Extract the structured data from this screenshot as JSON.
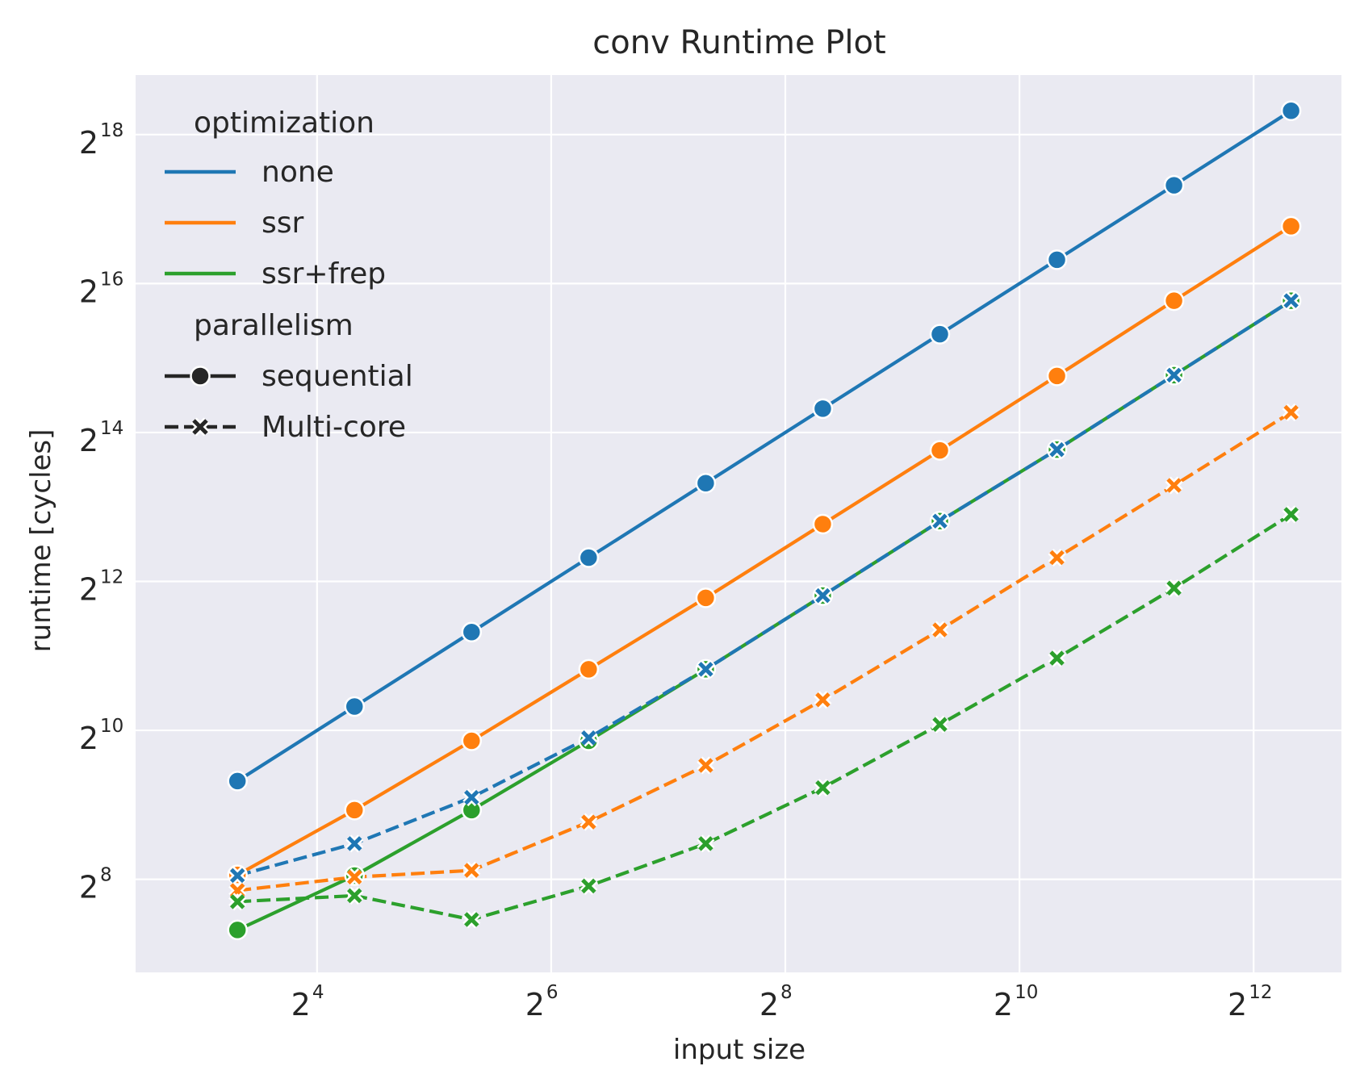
{
  "chart_data": {
    "type": "line",
    "title": "conv Runtime Plot",
    "xlabel": "input size",
    "ylabel": "runtime [cycles]",
    "xscale": "log2",
    "yscale": "log2",
    "xlim_log2": [
      2.45,
      12.75
    ],
    "ylim_log2": [
      6.75,
      18.8
    ],
    "x_ticks": [
      {
        "base": "2",
        "exp": "4",
        "log2": 4
      },
      {
        "base": "2",
        "exp": "6",
        "log2": 6
      },
      {
        "base": "2",
        "exp": "8",
        "log2": 8
      },
      {
        "base": "2",
        "exp": "10",
        "log2": 10
      },
      {
        "base": "2",
        "exp": "12",
        "log2": 12
      }
    ],
    "y_ticks": [
      {
        "base": "2",
        "exp": "8",
        "log2": 8
      },
      {
        "base": "2",
        "exp": "10",
        "log2": 10
      },
      {
        "base": "2",
        "exp": "12",
        "log2": 12
      },
      {
        "base": "2",
        "exp": "14",
        "log2": 14
      },
      {
        "base": "2",
        "exp": "16",
        "log2": 16
      },
      {
        "base": "2",
        "exp": "18",
        "log2": 18
      }
    ],
    "x_log2": [
      3.32,
      4.32,
      5.32,
      6.32,
      7.32,
      8.32,
      9.32,
      10.32,
      11.32,
      12.32
    ],
    "grid": true,
    "legend_position": "top-left",
    "legend": {
      "hue_title": "optimization",
      "style_title": "parallelism",
      "hue_entries": [
        {
          "label": "none",
          "color": "#1f77b4"
        },
        {
          "label": "ssr",
          "color": "#ff7f0e"
        },
        {
          "label": "ssr+frep",
          "color": "#2ca02c"
        }
      ],
      "style_entries": [
        {
          "label": "sequential",
          "marker": "circle",
          "dash": "solid"
        },
        {
          "label": "Multi-core",
          "marker": "x",
          "dash": "dashed"
        }
      ]
    },
    "series": [
      {
        "name": "none (sequential)",
        "optimization": "none",
        "parallelism": "sequential",
        "color": "#1f77b4",
        "marker": "circle",
        "dash": "solid",
        "y_log2": [
          9.32,
          10.32,
          11.32,
          12.32,
          13.32,
          14.32,
          15.32,
          16.32,
          17.32,
          18.32
        ]
      },
      {
        "name": "ssr (sequential)",
        "optimization": "ssr",
        "parallelism": "sequential",
        "color": "#ff7f0e",
        "marker": "circle",
        "dash": "solid",
        "y_log2": [
          8.06,
          8.93,
          9.86,
          10.82,
          11.78,
          12.77,
          13.76,
          14.76,
          15.77,
          16.77
        ]
      },
      {
        "name": "ssr+frep (sequential)",
        "optimization": "ssr+frep",
        "parallelism": "sequential",
        "color": "#2ca02c",
        "marker": "circle",
        "dash": "solid",
        "y_log2": [
          7.32,
          8.05,
          8.93,
          9.86,
          10.82,
          11.81,
          12.81,
          13.77,
          14.77,
          15.77
        ]
      },
      {
        "name": "none (Multi-core)",
        "optimization": "none",
        "parallelism": "Multi-core",
        "color": "#1f77b4",
        "marker": "x",
        "dash": "dashed",
        "y_log2": [
          8.05,
          8.48,
          9.1,
          9.9,
          10.82,
          11.81,
          12.81,
          13.77,
          14.77,
          15.77
        ]
      },
      {
        "name": "ssr (Multi-core)",
        "optimization": "ssr",
        "parallelism": "Multi-core",
        "color": "#ff7f0e",
        "marker": "x",
        "dash": "dashed",
        "y_log2": [
          7.85,
          8.03,
          8.12,
          8.77,
          9.53,
          10.41,
          11.35,
          12.32,
          13.29,
          14.27
        ]
      },
      {
        "name": "ssr+frep (Multi-core)",
        "optimization": "ssr+frep",
        "parallelism": "Multi-core",
        "color": "#2ca02c",
        "marker": "x",
        "dash": "dashed",
        "y_log2": [
          7.7,
          7.78,
          7.46,
          7.91,
          8.48,
          9.23,
          10.08,
          10.97,
          11.91,
          12.9
        ]
      }
    ]
  }
}
